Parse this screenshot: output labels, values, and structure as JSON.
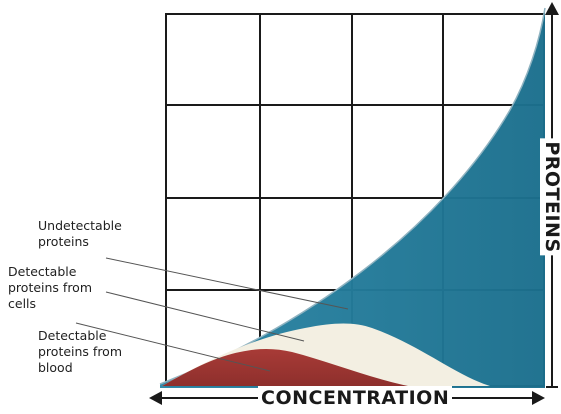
{
  "diagram": {
    "axes": {
      "x_label": "CONCENTRATION",
      "y_label": "PROTEINS"
    },
    "regions": [
      {
        "id": "undetectable",
        "fill": "#1f7a99"
      },
      {
        "id": "detectable-cells",
        "fill": "#f3efe2"
      },
      {
        "id": "detectable-blood",
        "fill": "#a23a36"
      }
    ],
    "callouts": {
      "undetectable": [
        "Undetectable",
        "proteins"
      ],
      "cells": [
        "Detectable",
        "proteins from",
        "cells"
      ],
      "blood": [
        "Detectable",
        "proteins from",
        "blood"
      ]
    },
    "colors": {
      "grid": "#1a1a1a",
      "leader": "#555555",
      "axis": "#1a1a1a"
    }
  }
}
